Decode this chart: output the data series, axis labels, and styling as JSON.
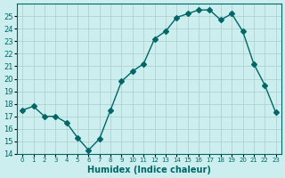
{
  "x": [
    0,
    1,
    2,
    3,
    4,
    5,
    6,
    7,
    8,
    9,
    10,
    11,
    12,
    13,
    14,
    15,
    16,
    17,
    18,
    19,
    20,
    21,
    22,
    23
  ],
  "y": [
    17.5,
    17.8,
    17.0,
    17.0,
    16.5,
    15.3,
    14.3,
    15.2,
    17.5,
    19.8,
    20.6,
    21.2,
    23.2,
    23.8,
    24.9,
    25.2,
    25.5,
    25.5,
    24.7,
    25.2,
    23.8,
    21.2,
    19.5,
    17.3
  ],
  "line_color": "#006666",
  "marker": "D",
  "marker_size": 3,
  "bg_color": "#cceeee",
  "grid_color": "#aacccc",
  "xlabel": "Humidex (Indice chaleur)",
  "ylim": [
    14,
    26
  ],
  "xlim": [
    -0.5,
    23.5
  ],
  "yticks": [
    14,
    15,
    16,
    17,
    18,
    19,
    20,
    21,
    22,
    23,
    24,
    25
  ],
  "xtick_labels": [
    "0",
    "1",
    "2",
    "3",
    "4",
    "5",
    "6",
    "7",
    "8",
    "9",
    "10",
    "11",
    "12",
    "13",
    "14",
    "15",
    "16",
    "17",
    "18",
    "19",
    "20",
    "21",
    "22",
    "23"
  ],
  "title_color": "#006666"
}
